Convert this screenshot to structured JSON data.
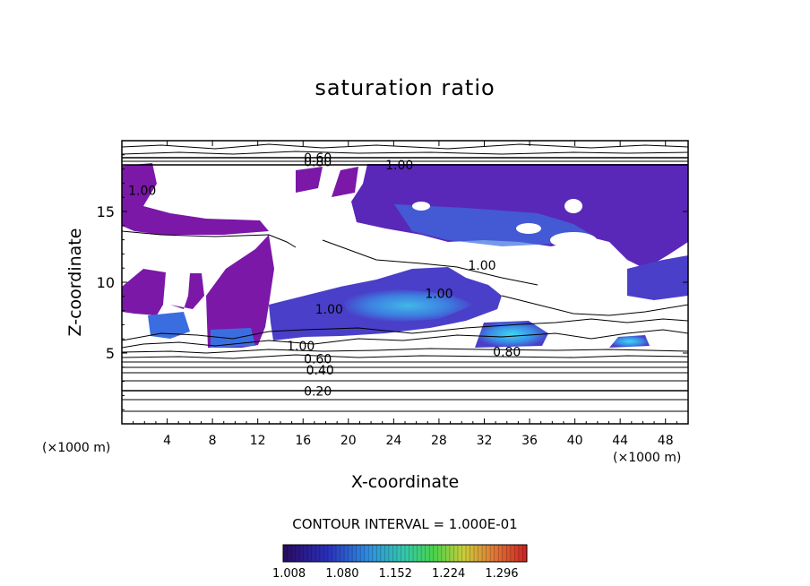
{
  "chart_data": {
    "type": "heatmap",
    "title": "saturation ratio",
    "xlabel": "X-coordinate",
    "ylabel": "Z-coordinate",
    "x_unit": "(×1000 m)",
    "z_unit": "(×1000 m)",
    "xlim": [
      0,
      50
    ],
    "ylim": [
      0,
      20
    ],
    "x_ticks": [
      4,
      8,
      12,
      16,
      20,
      24,
      28,
      32,
      36,
      40,
      44,
      48
    ],
    "y_ticks": [
      5,
      10,
      15
    ],
    "contour_interval_text": "CONTOUR INTERVAL = 1.000E-01",
    "contour_labels": [
      {
        "text": "0.20",
        "x": 17.3,
        "z": 2.3
      },
      {
        "text": "0.40",
        "x": 17.5,
        "z": 3.8
      },
      {
        "text": "0.60",
        "x": 17.3,
        "z": 4.6
      },
      {
        "text": "0.80",
        "x": 34.0,
        "z": 5.1
      },
      {
        "text": "0.60",
        "x": 17.3,
        "z": 18.8
      },
      {
        "text": "0.80",
        "x": 17.3,
        "z": 18.5
      },
      {
        "text": "1.00",
        "x": 24.5,
        "z": 18.3
      },
      {
        "text": "1.00",
        "x": 1.8,
        "z": 16.5
      },
      {
        "text": "1.00",
        "x": 31.8,
        "z": 11.2
      },
      {
        "text": "1.00",
        "x": 28.0,
        "z": 9.2
      },
      {
        "text": "1.00",
        "x": 18.3,
        "z": 8.1
      },
      {
        "text": "1.00",
        "x": 15.8,
        "z": 5.5
      }
    ],
    "colorbar": {
      "min": 1.0,
      "max": 1.33,
      "tick_labels": [
        "1.008",
        "1.080",
        "1.152",
        "1.224",
        "1.296"
      ],
      "tick_values": [
        1.008,
        1.08,
        1.152,
        1.224,
        1.296
      ]
    }
  }
}
